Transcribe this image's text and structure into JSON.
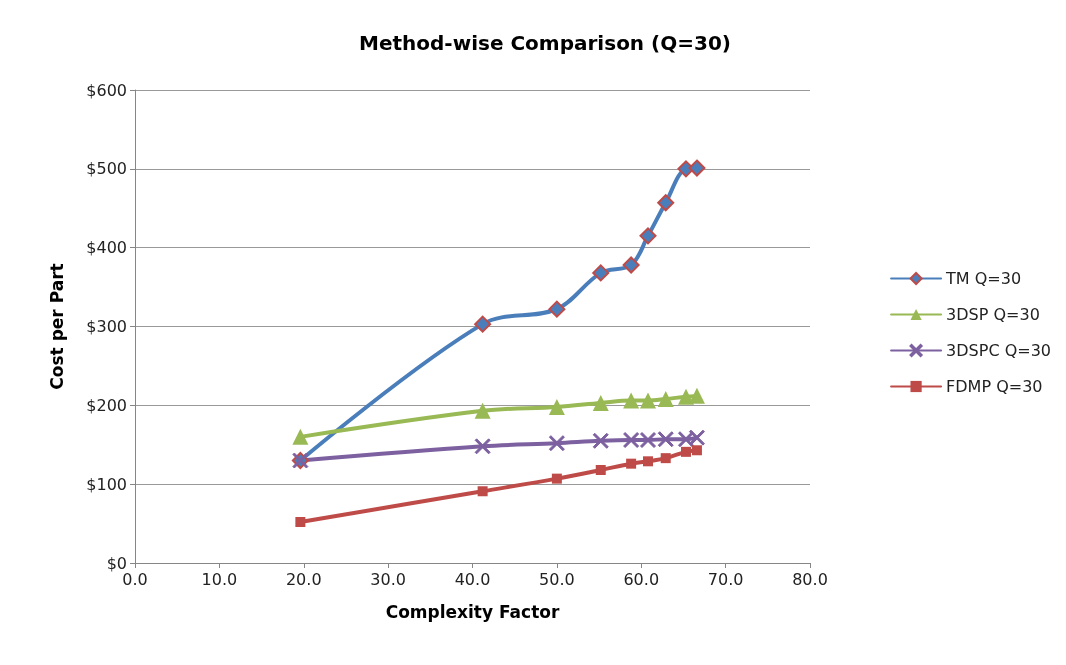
{
  "chart_data": {
    "type": "line",
    "title": "Method-wise Comparison (Q=30)",
    "xlabel": "Complexity Factor",
    "ylabel": "Cost per Part",
    "x": [
      19.6,
      41.2,
      50.0,
      55.2,
      58.8,
      60.8,
      62.9,
      65.3,
      66.6
    ],
    "series": [
      {
        "name": "TM Q=30",
        "color": "#4a7ebb",
        "marker": "diamond",
        "values": [
          130,
          303,
          322,
          368,
          378,
          415,
          457,
          500,
          501
        ]
      },
      {
        "name": "3DSP Q=30",
        "color": "#98b954",
        "marker": "triangle",
        "values": [
          160,
          193,
          198,
          203,
          206,
          206,
          208,
          211,
          212
        ]
      },
      {
        "name": "3DSPC Q=30",
        "color": "#7d60a0",
        "marker": "cross",
        "values": [
          130,
          148,
          152,
          155,
          156,
          156,
          157,
          157,
          159
        ]
      },
      {
        "name": "FDMP Q=30",
        "color": "#be4b48",
        "marker": "square",
        "values": [
          52,
          91,
          107,
          118,
          126,
          129,
          133,
          141,
          143
        ]
      }
    ],
    "xlim": [
      0,
      80
    ],
    "xticks": [
      {
        "value": 0,
        "label": "0.0"
      },
      {
        "value": 10,
        "label": "10.0"
      },
      {
        "value": 20,
        "label": "20.0"
      },
      {
        "value": 30,
        "label": "30.0"
      },
      {
        "value": 40,
        "label": "40.0"
      },
      {
        "value": 50,
        "label": "50.0"
      },
      {
        "value": 60,
        "label": "60.0"
      },
      {
        "value": 70,
        "label": "70.0"
      },
      {
        "value": 80,
        "label": "80.0"
      }
    ],
    "ylim": [
      0,
      600
    ],
    "yticks": [
      {
        "value": 0,
        "label": "$0"
      },
      {
        "value": 100,
        "label": "$100"
      },
      {
        "value": 200,
        "label": "$200"
      },
      {
        "value": 300,
        "label": "$300"
      },
      {
        "value": 400,
        "label": "$400"
      },
      {
        "value": 500,
        "label": "$500"
      },
      {
        "value": 600,
        "label": "$600"
      }
    ],
    "grid": "y",
    "legend": "right",
    "line_style": "solid"
  }
}
